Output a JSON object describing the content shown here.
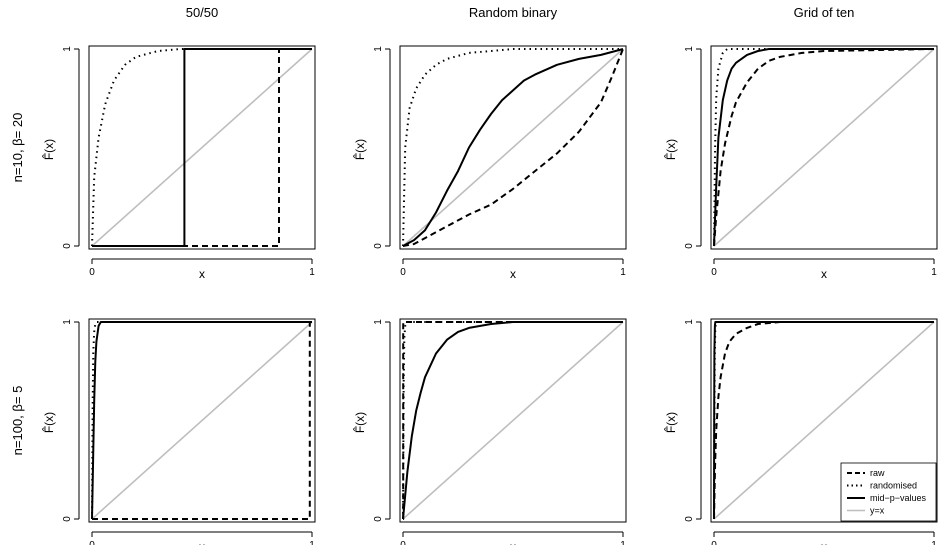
{
  "figure": {
    "column_titles": [
      "50/50",
      "Random binary",
      "Grid of ten"
    ],
    "row_labels": [
      "n=10, β= 20",
      "n=100, β= 5"
    ],
    "y_axis_label": "F̂(x)",
    "x_axis_label": "x"
  },
  "colors": {
    "series_black": "#000000",
    "reference_line": "#bebebe",
    "background": "#ffffff"
  },
  "chart_data": [
    {
      "type": "line",
      "panel": "row1-col1",
      "title": "50/50",
      "row_label": "n=10, β= 20",
      "xlabel": "x",
      "ylabel": "F̂(x)",
      "xlim": [
        0,
        1
      ],
      "ylim": [
        0,
        1
      ],
      "x_ticks": [
        "0",
        "1"
      ],
      "y_ticks": [
        "0",
        "1"
      ],
      "series": [
        {
          "style": "dashed",
          "x": [
            0,
            0.85,
            0.85,
            1
          ],
          "y": [
            0,
            0,
            1,
            1
          ]
        },
        {
          "style": "dotted",
          "x": [
            0,
            0.01,
            0.03,
            0.06,
            0.1,
            0.15,
            0.2,
            0.3,
            0.4,
            0.5,
            0.6,
            1
          ],
          "y": [
            0,
            0.35,
            0.55,
            0.72,
            0.84,
            0.92,
            0.96,
            0.99,
            1,
            1,
            1,
            1
          ]
        },
        {
          "style": "solid",
          "x": [
            0,
            0.42,
            0.42,
            1
          ],
          "y": [
            0,
            0,
            1,
            1
          ]
        },
        {
          "style": "solid",
          "color": "#bebebe",
          "x": [
            0,
            1
          ],
          "y": [
            0,
            1
          ]
        }
      ]
    },
    {
      "type": "line",
      "panel": "row1-col2",
      "title": "Random binary",
      "row_label": "n=10, β= 20",
      "xlabel": "x",
      "ylabel": "F̂(x)",
      "xlim": [
        0,
        1
      ],
      "ylim": [
        0,
        1
      ],
      "x_ticks": [
        "0",
        "1"
      ],
      "y_ticks": [
        "0",
        "1"
      ],
      "series": [
        {
          "style": "dashed",
          "x": [
            0,
            0.05,
            0.1,
            0.2,
            0.3,
            0.4,
            0.5,
            0.6,
            0.7,
            0.8,
            0.9,
            0.95,
            1
          ],
          "y": [
            0,
            0.01,
            0.04,
            0.1,
            0.16,
            0.21,
            0.29,
            0.38,
            0.47,
            0.58,
            0.73,
            0.86,
            1
          ]
        },
        {
          "style": "dotted",
          "x": [
            0,
            0.01,
            0.03,
            0.06,
            0.1,
            0.15,
            0.2,
            0.3,
            0.4,
            0.5,
            0.7,
            1
          ],
          "y": [
            0,
            0.5,
            0.7,
            0.8,
            0.87,
            0.92,
            0.95,
            0.98,
            0.99,
            1,
            1,
            1
          ]
        },
        {
          "style": "solid",
          "x": [
            0,
            0.05,
            0.1,
            0.15,
            0.2,
            0.25,
            0.3,
            0.35,
            0.4,
            0.45,
            0.5,
            0.55,
            0.6,
            0.7,
            0.8,
            0.9,
            1
          ],
          "y": [
            0,
            0.03,
            0.08,
            0.17,
            0.28,
            0.38,
            0.5,
            0.59,
            0.67,
            0.74,
            0.79,
            0.84,
            0.87,
            0.92,
            0.95,
            0.97,
            1
          ]
        },
        {
          "style": "solid",
          "color": "#bebebe",
          "x": [
            0,
            1
          ],
          "y": [
            0,
            1
          ]
        }
      ]
    },
    {
      "type": "line",
      "panel": "row1-col3",
      "title": "Grid of ten",
      "row_label": "n=10, β= 20",
      "xlabel": "x",
      "ylabel": "F̂(x)",
      "xlim": [
        0,
        1
      ],
      "ylim": [
        0,
        1
      ],
      "x_ticks": [
        "0",
        "1"
      ],
      "y_ticks": [
        "0",
        "1"
      ],
      "series": [
        {
          "style": "dashed",
          "x": [
            0,
            0.01,
            0.03,
            0.05,
            0.08,
            0.1,
            0.15,
            0.2,
            0.25,
            0.3,
            0.4,
            0.5,
            1
          ],
          "y": [
            0,
            0.15,
            0.38,
            0.52,
            0.66,
            0.73,
            0.83,
            0.9,
            0.94,
            0.96,
            0.98,
            0.99,
            1
          ]
        },
        {
          "style": "dotted",
          "x": [
            0,
            0.005,
            0.01,
            0.02,
            0.04,
            0.06,
            0.1,
            1
          ],
          "y": [
            0,
            0.5,
            0.75,
            0.9,
            0.98,
            1,
            1,
            1
          ]
        },
        {
          "style": "solid",
          "x": [
            0,
            0.01,
            0.02,
            0.04,
            0.06,
            0.08,
            0.1,
            0.15,
            0.2,
            0.25,
            0.3,
            1
          ],
          "y": [
            0,
            0.3,
            0.55,
            0.74,
            0.84,
            0.9,
            0.93,
            0.97,
            0.99,
            1,
            1,
            1
          ]
        },
        {
          "style": "solid",
          "color": "#bebebe",
          "x": [
            0,
            1
          ],
          "y": [
            0,
            1
          ]
        }
      ]
    },
    {
      "type": "line",
      "panel": "row2-col1",
      "title": "",
      "row_label": "n=100, β= 5",
      "xlabel": "x",
      "ylabel": "F̂(x)",
      "xlim": [
        0,
        1
      ],
      "ylim": [
        0,
        1
      ],
      "x_ticks": [
        "0",
        "1"
      ],
      "y_ticks": [
        "0",
        "1"
      ],
      "series": [
        {
          "style": "dashed",
          "x": [
            0,
            0.99,
            0.99,
            1
          ],
          "y": [
            0,
            0,
            1,
            1
          ]
        },
        {
          "style": "dotted",
          "x": [
            0,
            0.003,
            0.006,
            0.01,
            0.015,
            0.02,
            1
          ],
          "y": [
            0,
            0.6,
            0.85,
            0.95,
            0.99,
            1,
            1
          ]
        },
        {
          "style": "solid",
          "x": [
            0,
            0.005,
            0.01,
            0.015,
            0.02,
            0.03,
            0.04,
            1
          ],
          "y": [
            0,
            0.3,
            0.6,
            0.8,
            0.9,
            0.98,
            1,
            1
          ]
        },
        {
          "style": "solid",
          "color": "#bebebe",
          "x": [
            0,
            1
          ],
          "y": [
            0,
            1
          ]
        }
      ]
    },
    {
      "type": "line",
      "panel": "row2-col2",
      "title": "",
      "row_label": "n=100, β= 5",
      "xlabel": "x",
      "ylabel": "F̂(x)",
      "xlim": [
        0,
        1
      ],
      "ylim": [
        0,
        1
      ],
      "x_ticks": [
        "0",
        "1"
      ],
      "y_ticks": [
        "0",
        "1"
      ],
      "series": [
        {
          "style": "dashed",
          "x": [
            0,
            0.001,
            0.001,
            1
          ],
          "y": [
            0,
            0,
            1,
            1
          ]
        },
        {
          "style": "dotted",
          "x": [
            0,
            0.003,
            0.006,
            0.01,
            0.02,
            1
          ],
          "y": [
            0,
            0.7,
            0.92,
            0.98,
            1,
            1
          ]
        },
        {
          "style": "solid",
          "x": [
            0,
            0.02,
            0.04,
            0.06,
            0.08,
            0.1,
            0.15,
            0.2,
            0.25,
            0.3,
            0.4,
            0.5,
            1
          ],
          "y": [
            0,
            0.24,
            0.42,
            0.55,
            0.64,
            0.72,
            0.84,
            0.91,
            0.95,
            0.97,
            0.99,
            1,
            1
          ]
        },
        {
          "style": "solid",
          "color": "#bebebe",
          "x": [
            0,
            1
          ],
          "y": [
            0,
            1
          ]
        }
      ]
    },
    {
      "type": "line",
      "panel": "row2-col3",
      "title": "",
      "row_label": "n=100, β= 5",
      "xlabel": "x",
      "ylabel": "F̂(x)",
      "xlim": [
        0,
        1
      ],
      "ylim": [
        0,
        1
      ],
      "x_ticks": [
        "0",
        "1"
      ],
      "y_ticks": [
        "0",
        "1"
      ],
      "legend": {
        "position": "bottom-right",
        "entries": [
          {
            "label": "raw",
            "style": "dashed"
          },
          {
            "label": "randomised",
            "style": "dotted"
          },
          {
            "label": "mid−p−values",
            "style": "solid"
          },
          {
            "label": "y=x",
            "style": "solid",
            "color": "#bebebe"
          }
        ]
      },
      "series": [
        {
          "style": "dashed",
          "x": [
            0,
            0.005,
            0.01,
            0.02,
            0.03,
            0.05,
            0.07,
            0.1,
            0.15,
            0.2,
            0.3,
            1
          ],
          "y": [
            0,
            0.28,
            0.45,
            0.62,
            0.72,
            0.84,
            0.9,
            0.94,
            0.97,
            0.99,
            1,
            1
          ]
        },
        {
          "style": "dotted",
          "x": [
            0,
            0.003,
            0.006,
            0.01,
            1
          ],
          "y": [
            0,
            0.8,
            0.97,
            1,
            1
          ]
        },
        {
          "style": "solid",
          "x": [
            0,
            0.001,
            0.002,
            0.004,
            0.006,
            1
          ],
          "y": [
            0,
            0.55,
            0.85,
            0.98,
            1,
            1
          ]
        },
        {
          "style": "solid",
          "color": "#bebebe",
          "x": [
            0,
            1
          ],
          "y": [
            0,
            1
          ]
        }
      ]
    }
  ]
}
